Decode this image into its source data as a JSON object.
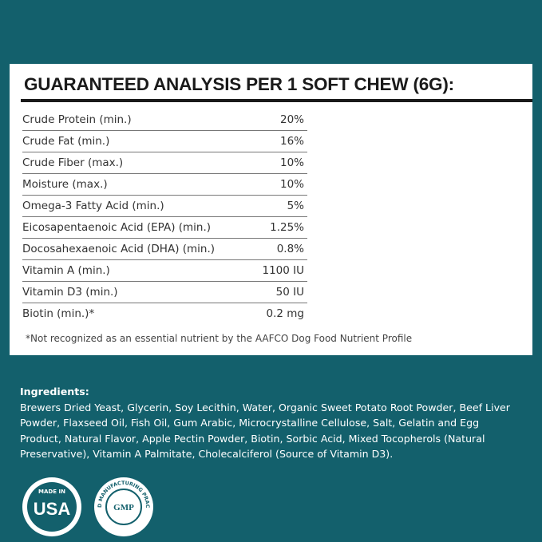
{
  "analysis": {
    "title": "GUARANTEED ANALYSIS PER 1 SOFT CHEW (6G):",
    "rows": [
      [
        "Crude Protein (min.)",
        "20%"
      ],
      [
        "Crude Fat (min.)",
        "16%"
      ],
      [
        "Crude Fiber (max.)",
        "10%"
      ],
      [
        "Moisture (max.)",
        "10%"
      ],
      [
        "Omega-3 Fatty Acid (min.)",
        "5%"
      ],
      [
        "Eicosapentaenoic Acid (EPA) (min.)",
        "1.25%"
      ],
      [
        "Docosahexaenoic Acid (DHA) (min.)",
        "0.8%"
      ],
      [
        "Vitamin A (min.)",
        "1100 IU"
      ],
      [
        "Vitamin D3 (min.)",
        "50 IU"
      ],
      [
        "Biotin (min.)*",
        "0.2 mg"
      ]
    ],
    "footnote": "*Not recognized as an essential nutrient by the AAFCO Dog Food Nutrient Profile"
  },
  "ingredients": {
    "heading": "Ingredients:",
    "lines": [
      "Brewers Dried Yeast, Glycerin, Soy Lecithin, Water, Organic Sweet Potato Root Powder, Beef Liver",
      "Powder, Flaxseed Oil, Fish Oil, Gum Arabic, Microcrystalline Cellulose, Salt, Gelatin and Egg",
      "Product, Natural Flavor, Apple Pectin Powder, Biotin, Sorbic Acid, Mixed Tocopherols (Natural",
      "Preservative), Vitamin A Palmitate, Cholecalciferol (Source of Vitamin D3)."
    ]
  },
  "badges": {
    "usa_top": "MADE IN",
    "usa_main": "USA",
    "gmp_main": "GMP",
    "gmp_ring": "GOOD MANUFACTURING PRACTICE"
  }
}
